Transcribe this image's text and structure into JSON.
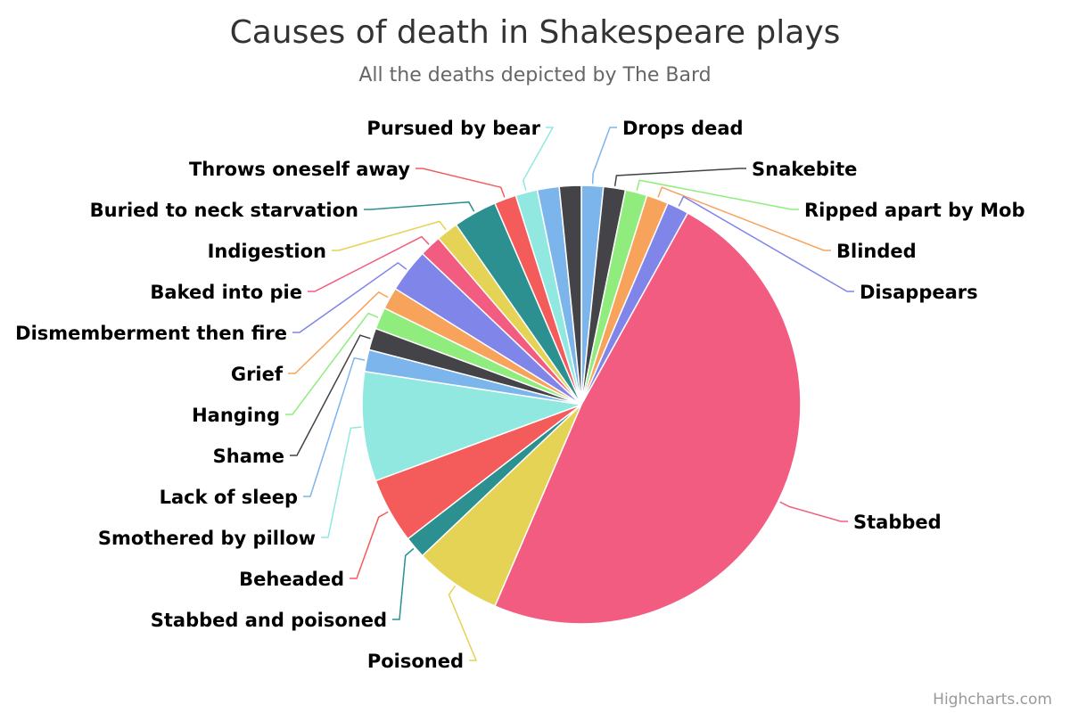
{
  "chart_data": {
    "type": "pie",
    "title": "Causes of death in Shakespeare plays",
    "subtitle": "All the deaths depicted by The Bard",
    "series": [
      {
        "values": [
          {
            "name": "Drops dead",
            "value": 1,
            "color": "#7cb5ec"
          },
          {
            "name": "Snakebite",
            "value": 1,
            "color": "#434348"
          },
          {
            "name": "Ripped apart by Mob",
            "value": 1,
            "color": "#90ed7d"
          },
          {
            "name": "Blinded",
            "value": 1,
            "color": "#f7a35c"
          },
          {
            "name": "Disappears",
            "value": 1,
            "color": "#8085e9"
          },
          {
            "name": "Stabbed",
            "value": 30,
            "color": "#f15c80"
          },
          {
            "name": "Poisoned",
            "value": 4,
            "color": "#e4d354"
          },
          {
            "name": "Stabbed and poisoned",
            "value": 1,
            "color": "#2b908f"
          },
          {
            "name": "Beheaded",
            "value": 3,
            "color": "#f45b5b"
          },
          {
            "name": "Smothered by pillow",
            "value": 5,
            "color": "#91e8e1"
          },
          {
            "name": "Lack of sleep",
            "value": 1,
            "color": "#7cb5ec"
          },
          {
            "name": "Shame",
            "value": 1,
            "color": "#434348"
          },
          {
            "name": "Hanging",
            "value": 1,
            "color": "#90ed7d"
          },
          {
            "name": "Grief",
            "value": 1,
            "color": "#f7a35c"
          },
          {
            "name": "Dismemberment then fire",
            "value": 2,
            "color": "#8085e9"
          },
          {
            "name": "Baked into pie",
            "value": 1,
            "color": "#f15c80"
          },
          {
            "name": "Indigestion",
            "value": 1,
            "color": "#e4d354"
          },
          {
            "name": "Buried to neck starvation",
            "value": 2,
            "color": "#2b908f"
          },
          {
            "name": "Throws oneself away",
            "value": 1,
            "color": "#f45b5b"
          },
          {
            "name": "Pursued by bear",
            "value": 1,
            "color": "#91e8e1"
          },
          {
            "name": "",
            "value": 1,
            "color": "#7cb5ec"
          },
          {
            "name": "",
            "value": 1,
            "color": "#434348"
          }
        ]
      }
    ],
    "credits": "Highcharts.com"
  }
}
